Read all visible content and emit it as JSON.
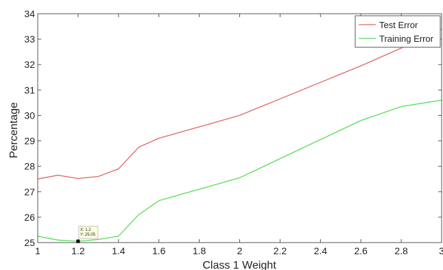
{
  "chart_data": {
    "type": "line",
    "title": "",
    "xlabel": "Class 1 Weight",
    "ylabel": "Percentage",
    "xlim": [
      1,
      3
    ],
    "ylim": [
      25,
      34
    ],
    "xticks": [
      1,
      1.2,
      1.4,
      1.6,
      1.8,
      2,
      2.2,
      2.4,
      2.6,
      2.8,
      3
    ],
    "yticks": [
      25,
      26,
      27,
      28,
      29,
      30,
      31,
      32,
      33,
      34
    ],
    "xtick_labels": [
      "1",
      "1.2",
      "1.4",
      "1.6",
      "1.8",
      "2",
      "2.2",
      "2.4",
      "2.6",
      "2.8",
      "3"
    ],
    "ytick_labels": [
      "25",
      "26",
      "27",
      "28",
      "29",
      "30",
      "31",
      "32",
      "33",
      "34"
    ],
    "grid": false,
    "legend_position": "top-right",
    "series": [
      {
        "name": "Test Error",
        "color": "#e06666",
        "x": [
          1.0,
          1.1,
          1.2,
          1.3,
          1.4,
          1.5,
          1.6,
          1.8,
          2.0,
          2.2,
          2.4,
          2.6,
          2.8,
          3.0
        ],
        "y": [
          27.5,
          27.65,
          27.52,
          27.6,
          27.9,
          28.75,
          29.1,
          29.55,
          30.0,
          30.65,
          31.3,
          31.95,
          32.65,
          33.4
        ]
      },
      {
        "name": "Training Error",
        "color": "#55dd55",
        "x": [
          1.0,
          1.1,
          1.2,
          1.3,
          1.4,
          1.5,
          1.6,
          1.8,
          2.0,
          2.2,
          2.4,
          2.6,
          2.8,
          3.0
        ],
        "y": [
          25.25,
          25.1,
          25.05,
          25.12,
          25.25,
          26.1,
          26.65,
          27.1,
          27.55,
          28.3,
          29.05,
          29.8,
          30.35,
          30.6
        ]
      }
    ],
    "annotations": [
      {
        "x": 1.2,
        "y": 25.05,
        "label_x": "X: 1.2",
        "label_y": "Y: 25.05"
      }
    ]
  }
}
